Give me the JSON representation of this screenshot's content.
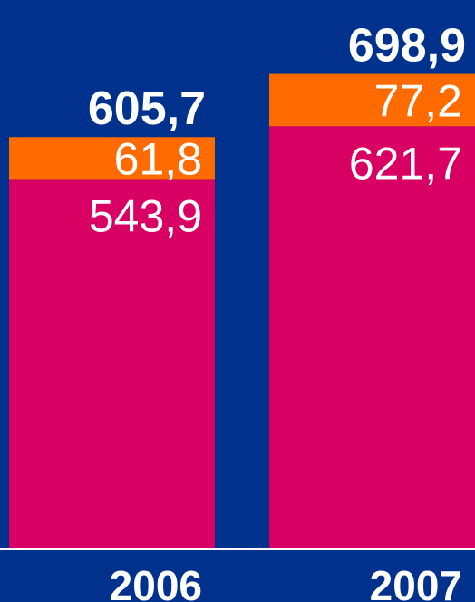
{
  "chart_data": {
    "type": "stacked_bar",
    "categories": [
      "2006",
      "2007"
    ],
    "series": [
      {
        "color": "#d80062",
        "values": [
          543.9,
          621.7
        ],
        "value_labels": [
          "543,9",
          "621,7"
        ]
      },
      {
        "color": "#ff6b00",
        "values": [
          61.8,
          77.2
        ],
        "value_labels": [
          "61,8",
          "77,2"
        ]
      }
    ],
    "totals": {
      "values": [
        605.7,
        698.9
      ],
      "value_labels": [
        "605,7",
        "698,9"
      ]
    },
    "ylim": [
      0,
      800
    ]
  }
}
